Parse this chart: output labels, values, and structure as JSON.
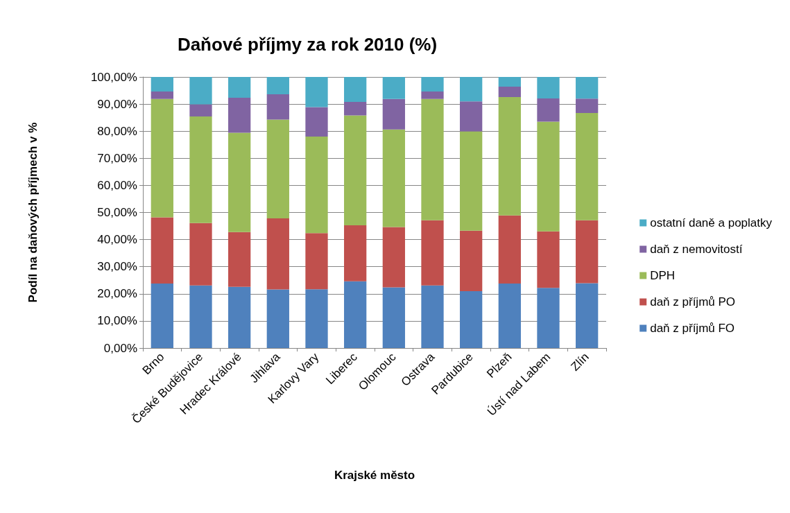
{
  "chart_data": {
    "type": "bar",
    "stacked": true,
    "title": "Daňové příjmy za rok 2010 (%)",
    "xlabel": "Krajské město",
    "ylabel": "Podíl na daňových příjmech v %",
    "categories": [
      "Brno",
      "České Budějovice",
      "Hradec Králové",
      "Jihlava",
      "Karlovy Vary",
      "Liberec",
      "Olomouc",
      "Ostrava",
      "Pardubice",
      "Plzeň",
      "Ústí nad Labem",
      "Zlín"
    ],
    "series": [
      {
        "name": "daň z příjmů FO",
        "color": "#4f81bd",
        "values": [
          23.8,
          23.1,
          22.6,
          21.6,
          21.7,
          24.6,
          22.4,
          23.1,
          21.0,
          23.8,
          22.2,
          23.9
        ]
      },
      {
        "name": "daň z příjmů PO",
        "color": "#c0504d",
        "values": [
          24.4,
          23.0,
          20.2,
          26.2,
          20.7,
          20.7,
          22.2,
          24.0,
          22.3,
          25.1,
          20.8,
          23.2
        ]
      },
      {
        "name": "DPH",
        "color": "#9bbb59",
        "values": [
          43.7,
          39.3,
          36.6,
          36.5,
          35.6,
          40.5,
          36.0,
          44.8,
          36.6,
          43.7,
          40.5,
          39.6
        ]
      },
      {
        "name": "daň z nemovitostí",
        "color": "#8064a2",
        "values": [
          2.7,
          4.5,
          12.9,
          9.3,
          10.9,
          5.0,
          11.3,
          2.7,
          11.1,
          3.8,
          8.6,
          5.3
        ]
      },
      {
        "name": "ostatní daně a poplatky",
        "color": "#4bacc6",
        "values": [
          5.4,
          10.1,
          7.7,
          6.4,
          11.1,
          9.2,
          8.1,
          5.4,
          9.0,
          3.6,
          7.9,
          8.0
        ]
      }
    ],
    "ylim": [
      0,
      100
    ],
    "yticks": [
      {
        "value": 0,
        "label": "0,00%"
      },
      {
        "value": 10,
        "label": "10,00%"
      },
      {
        "value": 20,
        "label": "20,00%"
      },
      {
        "value": 30,
        "label": "30,00%"
      },
      {
        "value": 40,
        "label": "40,00%"
      },
      {
        "value": 50,
        "label": "50,00%"
      },
      {
        "value": 60,
        "label": "60,00%"
      },
      {
        "value": 70,
        "label": "70,00%"
      },
      {
        "value": 80,
        "label": "80,00%"
      },
      {
        "value": 90,
        "label": "90,00%"
      },
      {
        "value": 100,
        "label": "100,00%"
      }
    ],
    "grid": "y",
    "legend": "right"
  }
}
